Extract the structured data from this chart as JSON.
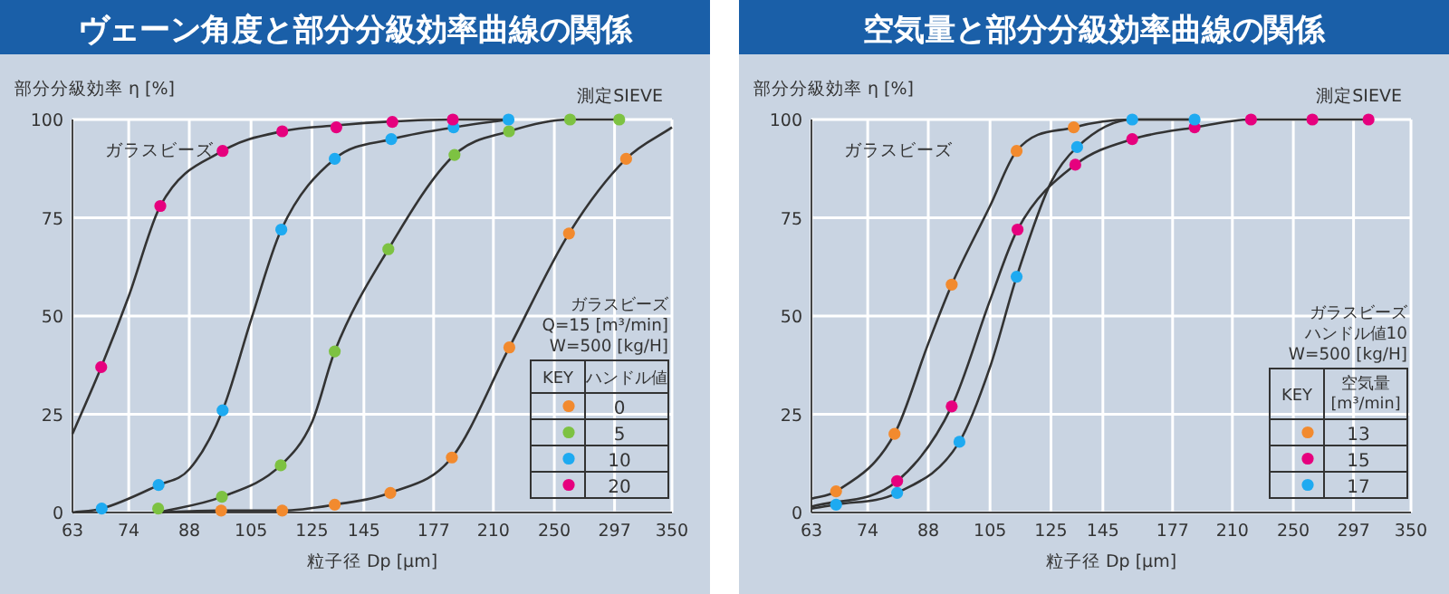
{
  "chart_data": [
    {
      "type": "scatter",
      "title": "ヴェーン角度と部分分級効率曲線の関係",
      "xlabel": "粒子径 Dp [μm]",
      "ylabel": "部分分級効率 η [%]",
      "legend_title": "ハンドル値",
      "annotations": [
        "ガラスビーズ",
        "測定SIEVE",
        "ガラスビーズ",
        "Q=15 [m³/min]",
        "W=500 [kg/H]",
        "KEY"
      ],
      "log": "x",
      "xlim": [
        63,
        350
      ],
      "xticks": [
        63,
        74,
        88,
        105,
        125,
        145,
        177,
        210,
        250,
        297,
        350
      ],
      "ylim": [
        0,
        100
      ],
      "yticks": [
        0,
        25,
        50,
        75,
        100
      ],
      "grid": true,
      "legend": "right",
      "series": [
        {
          "type": "line",
          "color": "#333333",
          "x": [
            63,
            68.4,
            74,
            81,
            96.8,
            114.8,
            134,
            157,
            187,
            219
          ],
          "values": [
            20,
            37,
            55,
            78,
            92,
            97,
            98.5,
            99.5,
            100,
            100
          ]
        },
        {
          "type": "line",
          "color": "#333333",
          "x": [
            63,
            68.5,
            80.6,
            88,
            96.8,
            105,
            114.5,
            133.4,
            156.8,
            187.4,
            219
          ],
          "values": [
            0,
            1,
            7,
            11,
            26,
            49,
            72,
            90,
            95,
            98,
            100
          ]
        },
        {
          "type": "line",
          "color": "#333333",
          "x": [
            80.5,
            96.6,
            114.3,
            125,
            133.4,
            155.5,
            187.9,
            219.6,
            261.5,
            301
          ],
          "values": [
            0,
            4,
            12,
            23,
            41,
            67,
            91,
            97,
            100,
            100
          ]
        },
        {
          "type": "line",
          "color": "#333333",
          "x": [
            80,
            96.4,
            114.8,
            133.4,
            156.4,
            186.5,
            219.8,
            260.7,
            307,
            350
          ],
          "values": [
            0,
            0.5,
            0.5,
            2,
            5,
            14,
            42,
            71,
            90,
            98
          ]
        },
        {
          "type": "scatter",
          "name": "0",
          "color": "#f28a2e",
          "x": [
            96.4,
            114.8,
            133.4,
            156.4,
            186.5,
            219.8,
            260.7,
            307
          ],
          "values": [
            0.5,
            0.5,
            2,
            5,
            14,
            42,
            71,
            90
          ]
        },
        {
          "type": "scatter",
          "name": "5",
          "color": "#7dc242",
          "x": [
            80.5,
            96.6,
            114.3,
            133.4,
            155.5,
            187.9,
            219.6,
            261.5,
            301
          ],
          "values": [
            1,
            4,
            12,
            41,
            67,
            91,
            97,
            100,
            100
          ]
        },
        {
          "type": "scatter",
          "name": "10",
          "color": "#1eaaf1",
          "x": [
            68.5,
            80.6,
            96.8,
            114.5,
            133.4,
            156.8,
            187.4,
            219.3
          ],
          "values": [
            1,
            7,
            26,
            72,
            90,
            95,
            98,
            100
          ]
        },
        {
          "type": "scatter",
          "name": "20",
          "color": "#e6007e",
          "x": [
            68.4,
            81,
            96.8,
            114.8,
            134,
            157.3,
            187
          ],
          "values": [
            37,
            78,
            92,
            97,
            98,
            99.4,
            100
          ]
        }
      ]
    },
    {
      "type": "scatter",
      "title": "空気量と部分分級効率曲線の関係",
      "xlabel": "粒子径 Dp [μm]",
      "ylabel": "部分分級効率 η [%]",
      "legend_title": "空気量\n[m³/min]",
      "annotations": [
        "ガラスビーズ",
        "測定SIEVE",
        "ガラスビーズ",
        "ハンドル値10",
        "W=500 [kg/H]",
        "KEY"
      ],
      "log": "x",
      "xlim": [
        63,
        350
      ],
      "xticks": [
        63,
        74,
        88,
        105,
        125,
        145,
        177,
        210,
        250,
        297,
        350
      ],
      "ylim": [
        0,
        100
      ],
      "yticks": [
        0,
        25,
        50,
        75,
        100
      ],
      "grid": true,
      "legend": "right",
      "series": [
        {
          "type": "line",
          "color": "#333333",
          "x": [
            63,
            67.6,
            79.9,
            88,
            94.1,
            105,
            113.3,
            133.4,
            157,
            188
          ],
          "values": [
            3.5,
            5.4,
            20,
            43,
            58,
            78,
            92,
            98,
            100,
            100
          ]
        },
        {
          "type": "line",
          "color": "#333333",
          "x": [
            63,
            80.5,
            94.1,
            105,
            113.6,
            134,
            157.7,
            188.5,
            221.5,
            310
          ],
          "values": [
            1.5,
            8,
            27,
            54,
            72,
            88.5,
            95,
            98,
            100,
            100
          ]
        },
        {
          "type": "line",
          "color": "#333333",
          "x": [
            63,
            67.6,
            80.5,
            96.2,
            105,
            113.3,
            125,
            134.7,
            157.7,
            188.5
          ],
          "values": [
            1,
            2,
            5,
            18,
            37,
            60,
            84,
            93,
            100,
            100
          ]
        },
        {
          "type": "scatter",
          "name": "13",
          "color": "#f28a2e",
          "x": [
            67.6,
            79.9,
            94.1,
            113.3,
            133.4
          ],
          "values": [
            5.4,
            20,
            58,
            92,
            98
          ]
        },
        {
          "type": "scatter",
          "name": "15",
          "color": "#e6007e",
          "x": [
            80.5,
            94.1,
            113.6,
            134,
            157.7,
            188.5,
            221.5,
            264,
            310
          ],
          "values": [
            8,
            27,
            72,
            88.5,
            95,
            98,
            100,
            100,
            100
          ]
        },
        {
          "type": "scatter",
          "name": "17",
          "color": "#1eaaf1",
          "x": [
            67.6,
            80.5,
            96.2,
            113.3,
            134.7,
            157.7,
            188.5
          ],
          "values": [
            2,
            5,
            18,
            60,
            93,
            100,
            100
          ]
        }
      ]
    }
  ]
}
